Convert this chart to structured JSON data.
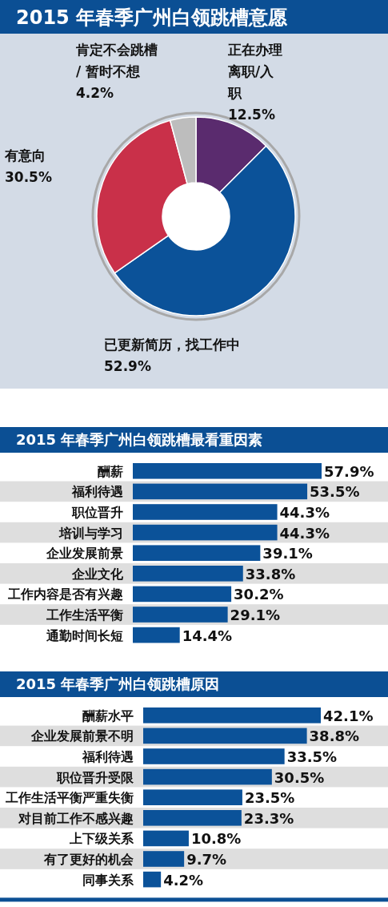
{
  "chart_data": [
    {
      "type": "donut",
      "title": "2015 年春季广州白领跳槽意愿",
      "categories": [
        "正在办理离职/入职",
        "已更新简历，找工作中",
        "有意向",
        "肯定不会跳槽/ 暂时不想"
      ],
      "values": [
        12.5,
        52.9,
        30.5,
        4.2
      ],
      "value_labels": [
        "12.5%",
        "52.9%",
        "30.5%",
        "4.2%"
      ],
      "colors": [
        "#5a2b6e",
        "#0b5299",
        "#c93049",
        "#bdbdbd"
      ]
    },
    {
      "type": "bar",
      "orientation": "horizontal",
      "title": "2015 年春季广州白领跳槽最看重因素",
      "categories": [
        "酬薪",
        "福利待遇",
        "职位晋升",
        "培训与学习",
        "企业发展前景",
        "企业文化",
        "工作内容是否有兴趣",
        "工作生活平衡",
        "通勤时间长短"
      ],
      "values": [
        57.9,
        53.5,
        44.3,
        44.3,
        39.1,
        33.8,
        30.2,
        29.1,
        14.4
      ],
      "value_labels": [
        "57.9%",
        "53.5%",
        "44.3%",
        "44.3%",
        "39.1%",
        "33.8%",
        "30.2%",
        "29.1%",
        "14.4%"
      ],
      "color": "#0b5299"
    },
    {
      "type": "bar",
      "orientation": "horizontal",
      "title": "2015 年春季广州白领跳槽原因",
      "categories": [
        "酬薪水平",
        "企业发展前景不明",
        "福利待遇",
        "职位晋升受限",
        "工作生活平衡严重失衡",
        "对目前工作不感兴趣",
        "上下级关系",
        "有了更好的机会",
        "同事关系"
      ],
      "values": [
        42.1,
        38.8,
        33.5,
        30.5,
        23.5,
        23.3,
        10.8,
        9.7,
        4.2
      ],
      "value_labels": [
        "42.1%",
        "38.8%",
        "33.5%",
        "30.5%",
        "23.5%",
        "23.3%",
        "10.8%",
        "9.7%",
        "4.2%"
      ],
      "color": "#0b5299"
    }
  ]
}
